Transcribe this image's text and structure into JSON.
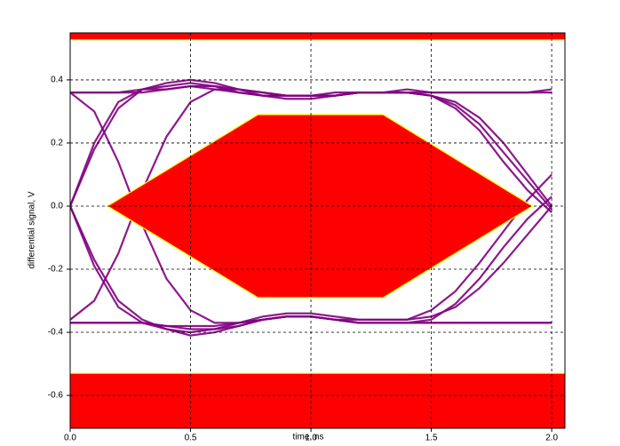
{
  "chart_data": {
    "type": "line",
    "x_label": "time, ns",
    "y_label": "differential signal, V",
    "xlim": [
      0,
      2.055
    ],
    "ylim": [
      -0.704,
      0.549
    ],
    "xticks": [
      {
        "value": 0,
        "label": "0.0"
      },
      0.5,
      {
        "value": 1,
        "label": "1.0"
      },
      1.5,
      {
        "value": 2,
        "label": "2.0"
      }
    ],
    "yticks": [
      0.4,
      0.2,
      {
        "value": 0,
        "label": "0.0"
      },
      -0.2,
      -0.4,
      -0.6
    ],
    "grid": true,
    "x": [
      0,
      0.1,
      0.2,
      0.3,
      0.4,
      0.5,
      0.6,
      0.7,
      0.8,
      0.9,
      1.0,
      1.1,
      1.2,
      1.3,
      1.4,
      1.5,
      1.6,
      1.7,
      1.8,
      1.9,
      2.0
    ],
    "series": [
      {
        "color": "#800080",
        "values": [
          0,
          0.2,
          0.33,
          0.37,
          0.38,
          0.39,
          0.38,
          0.36,
          0.35,
          0.34,
          0.34,
          0.35,
          0.36,
          0.36,
          0.36,
          0.35,
          0.33,
          0.28,
          0.2,
          0.1,
          0
        ]
      },
      {
        "color": "#800080",
        "values": [
          0,
          0.18,
          0.31,
          0.37,
          0.39,
          0.4,
          0.39,
          0.37,
          0.35,
          0.35,
          0.35,
          0.35,
          0.36,
          0.36,
          0.36,
          0.36,
          0.36,
          0.36,
          0.36,
          0.36,
          0.37
        ]
      },
      {
        "color": "#800080",
        "values": [
          0.36,
          0.36,
          0.36,
          0.37,
          0.37,
          0.38,
          0.38,
          0.37,
          0.36,
          0.35,
          0.35,
          0.35,
          0.36,
          0.36,
          0.37,
          0.36,
          0.36,
          0.36,
          0.36,
          0.36,
          0.36
        ]
      },
      {
        "color": "#800080",
        "values": [
          0.36,
          0.36,
          0.36,
          0.36,
          0.37,
          0.38,
          0.37,
          0.36,
          0.35,
          0.35,
          0.35,
          0.36,
          0.36,
          0.36,
          0.36,
          0.35,
          0.32,
          0.26,
          0.17,
          0.08,
          -0.01
        ]
      },
      {
        "color": "#800080",
        "values": [
          -0.36,
          -0.3,
          -0.15,
          0.05,
          0.22,
          0.33,
          0.37,
          0.37,
          0.36,
          0.35,
          0.35,
          0.35,
          0.36,
          0.36,
          0.36,
          0.35,
          0.31,
          0.24,
          0.14,
          0.05,
          -0.02
        ]
      },
      {
        "color": "#800080",
        "values": [
          0,
          -0.19,
          -0.32,
          -0.37,
          -0.39,
          -0.4,
          -0.39,
          -0.37,
          -0.35,
          -0.34,
          -0.34,
          -0.35,
          -0.36,
          -0.36,
          -0.36,
          -0.35,
          -0.32,
          -0.26,
          -0.18,
          -0.09,
          0
        ]
      },
      {
        "color": "#800080",
        "values": [
          0,
          -0.17,
          -0.3,
          -0.36,
          -0.39,
          -0.41,
          -0.4,
          -0.38,
          -0.36,
          -0.35,
          -0.35,
          -0.36,
          -0.37,
          -0.37,
          -0.37,
          -0.37,
          -0.37,
          -0.37,
          -0.37,
          -0.37,
          -0.37
        ]
      },
      {
        "color": "#800080",
        "values": [
          -0.37,
          -0.37,
          -0.37,
          -0.37,
          -0.38,
          -0.39,
          -0.39,
          -0.38,
          -0.36,
          -0.35,
          -0.35,
          -0.36,
          -0.37,
          -0.37,
          -0.37,
          -0.37,
          -0.37,
          -0.37,
          -0.37,
          -0.37,
          -0.37
        ]
      },
      {
        "color": "#800080",
        "values": [
          -0.37,
          -0.37,
          -0.37,
          -0.37,
          -0.38,
          -0.38,
          -0.38,
          -0.37,
          -0.36,
          -0.35,
          -0.35,
          -0.36,
          -0.36,
          -0.36,
          -0.36,
          -0.33,
          -0.27,
          -0.18,
          -0.08,
          0.02,
          0.1
        ]
      },
      {
        "color": "#800080",
        "values": [
          0.36,
          0.3,
          0.14,
          -0.06,
          -0.23,
          -0.33,
          -0.37,
          -0.37,
          -0.36,
          -0.35,
          -0.35,
          -0.36,
          -0.37,
          -0.37,
          -0.37,
          -0.36,
          -0.31,
          -0.23,
          -0.13,
          -0.04,
          0.03
        ]
      }
    ],
    "mask": {
      "color": "#ff0000",
      "edge_color": "#ffff00",
      "x": [
        0.155,
        0.78,
        1.3,
        1.92,
        1.3,
        0.78
      ],
      "y": [
        0,
        0.29,
        0.29,
        0,
        -0.29,
        -0.29
      ]
    },
    "upper_band": [
      0.527,
      0.549
    ],
    "lower_band": [
      -0.704,
      -0.53
    ]
  }
}
